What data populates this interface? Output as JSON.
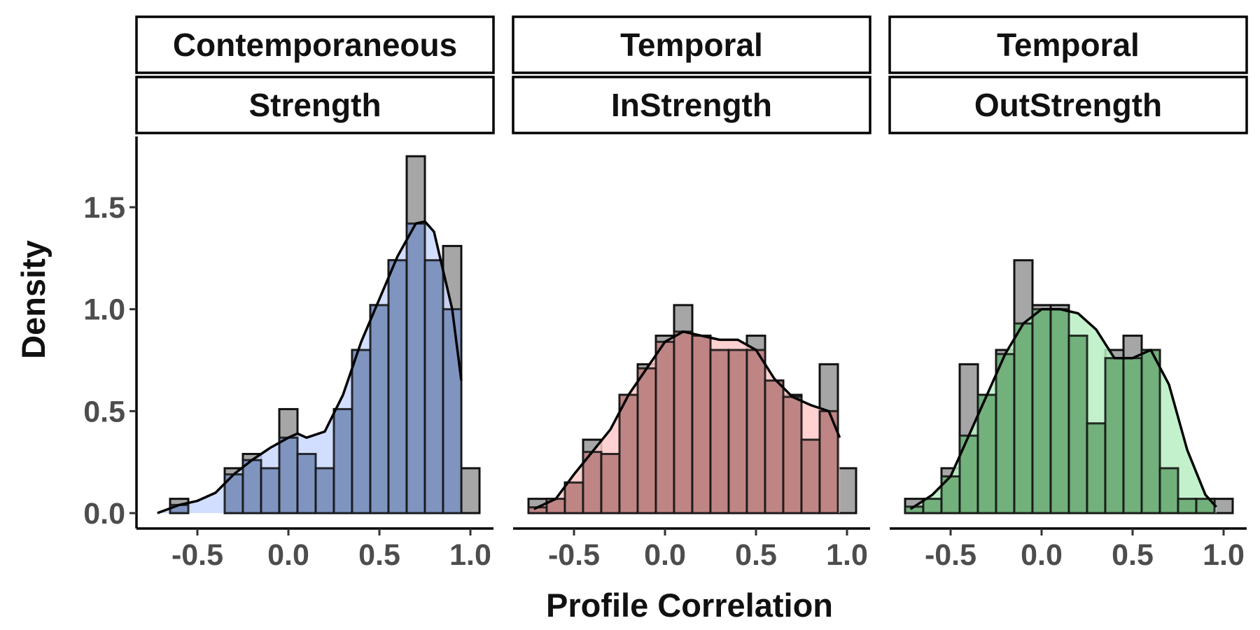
{
  "xlabel": "Profile Correlation",
  "ylabel": "Density",
  "colors": {
    "bar_gray": "#a6a6a6",
    "bar_stroke": "#111111",
    "fill_blue": "#7f95c0",
    "fill_red": "#bf8585",
    "fill_green": "#72b07c",
    "curve_blue_light": "#c9d8ff",
    "curve_red_light": "#ffc9c9",
    "curve_green_light": "#b8eec3"
  },
  "chart_data": [
    {
      "type": "bar",
      "facet": [
        "Contemporaneous",
        "Strength"
      ],
      "xlim": [
        -0.8,
        1.1
      ],
      "ylim": [
        0,
        1.8
      ],
      "xticks": [
        "-0.5",
        "0.0",
        "0.5",
        "1.0"
      ],
      "yticks": [
        "0.0",
        "0.5",
        "1.0",
        "1.5"
      ],
      "bin_width": 0.1,
      "grid": false,
      "series": [
        {
          "name": "Histogram",
          "x": [
            -0.6,
            -0.5,
            -0.4,
            -0.3,
            -0.2,
            -0.1,
            0.0,
            0.1,
            0.2,
            0.3,
            0.4,
            0.5,
            0.6,
            0.7,
            0.8,
            0.9,
            1.0
          ],
          "values": [
            0.07,
            0.0,
            0.0,
            0.22,
            0.29,
            0.22,
            0.51,
            0.29,
            0.22,
            0.51,
            0.8,
            1.02,
            1.24,
            1.75,
            1.24,
            1.31,
            0.22
          ]
        },
        {
          "name": "Density",
          "x": [
            -0.72,
            -0.6,
            -0.5,
            -0.4,
            -0.3,
            -0.2,
            -0.1,
            0.0,
            0.05,
            0.1,
            0.2,
            0.3,
            0.4,
            0.5,
            0.6,
            0.7,
            0.75,
            0.8,
            0.9,
            0.95
          ],
          "values": [
            0.0,
            0.04,
            0.06,
            0.1,
            0.19,
            0.26,
            0.32,
            0.37,
            0.39,
            0.37,
            0.4,
            0.58,
            0.84,
            1.05,
            1.26,
            1.42,
            1.43,
            1.38,
            1.0,
            0.65
          ]
        }
      ]
    },
    {
      "type": "bar",
      "facet": [
        "Temporal",
        "InStrength"
      ],
      "xlim": [
        -0.8,
        1.1
      ],
      "ylim": [
        0,
        1.8
      ],
      "xticks": [
        "-0.5",
        "0.0",
        "0.5",
        "1.0"
      ],
      "yticks": [
        "0.0",
        "0.5",
        "1.0",
        "1.5"
      ],
      "bin_width": 0.1,
      "grid": false,
      "series": [
        {
          "name": "Histogram",
          "x": [
            -0.7,
            -0.6,
            -0.5,
            -0.4,
            -0.3,
            -0.2,
            -0.1,
            0.0,
            0.1,
            0.2,
            0.3,
            0.4,
            0.5,
            0.6,
            0.7,
            0.8,
            0.9,
            1.0
          ],
          "values": [
            0.07,
            0.07,
            0.15,
            0.36,
            0.29,
            0.58,
            0.73,
            0.87,
            1.02,
            0.87,
            0.8,
            0.8,
            0.87,
            0.65,
            0.58,
            0.36,
            0.73,
            0.22
          ]
        },
        {
          "name": "Density",
          "x": [
            -0.72,
            -0.6,
            -0.5,
            -0.4,
            -0.3,
            -0.2,
            -0.1,
            0.0,
            0.1,
            0.2,
            0.3,
            0.4,
            0.5,
            0.6,
            0.7,
            0.8,
            0.9,
            0.96
          ],
          "values": [
            0.02,
            0.07,
            0.19,
            0.3,
            0.41,
            0.58,
            0.71,
            0.84,
            0.89,
            0.87,
            0.85,
            0.85,
            0.8,
            0.66,
            0.57,
            0.53,
            0.5,
            0.37
          ]
        }
      ]
    },
    {
      "type": "bar",
      "facet": [
        "Temporal",
        "OutStrength"
      ],
      "xlim": [
        -0.8,
        1.1
      ],
      "ylim": [
        0,
        1.8
      ],
      "xticks": [
        "-0.5",
        "0.0",
        "0.5",
        "1.0"
      ],
      "yticks": [
        "0.0",
        "0.5",
        "1.0",
        "1.5"
      ],
      "bin_width": 0.1,
      "grid": false,
      "series": [
        {
          "name": "Histogram",
          "x": [
            -0.7,
            -0.6,
            -0.5,
            -0.4,
            -0.3,
            -0.2,
            -0.1,
            0.0,
            0.1,
            0.2,
            0.3,
            0.4,
            0.5,
            0.6,
            0.7,
            0.8,
            0.9,
            1.0
          ],
          "values": [
            0.07,
            0.07,
            0.22,
            0.73,
            0.58,
            0.8,
            1.24,
            1.02,
            1.02,
            0.87,
            0.44,
            0.8,
            0.87,
            0.8,
            0.22,
            0.07,
            0.07,
            0.07
          ]
        },
        {
          "name": "Density",
          "x": [
            -0.72,
            -0.6,
            -0.5,
            -0.4,
            -0.3,
            -0.2,
            -0.1,
            0.0,
            0.1,
            0.2,
            0.3,
            0.4,
            0.5,
            0.6,
            0.7,
            0.8,
            0.9,
            0.96
          ],
          "values": [
            0.02,
            0.09,
            0.18,
            0.38,
            0.58,
            0.78,
            0.93,
            1.0,
            1.0,
            0.98,
            0.9,
            0.76,
            0.76,
            0.8,
            0.63,
            0.31,
            0.09,
            0.03
          ]
        }
      ]
    }
  ]
}
